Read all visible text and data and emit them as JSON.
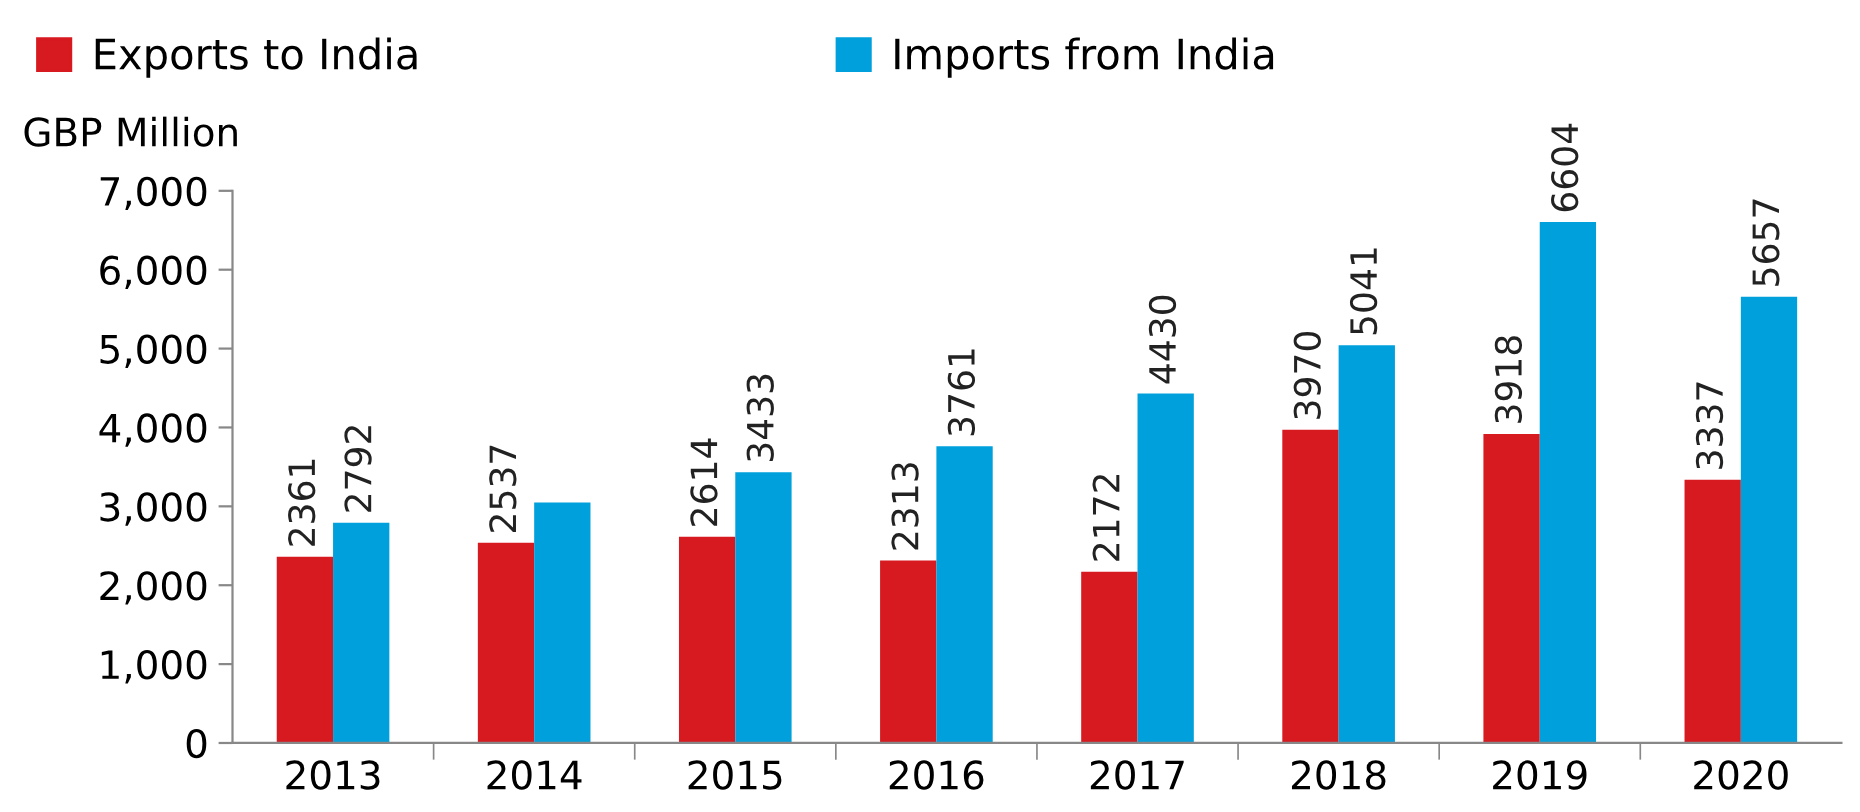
{
  "chart_data": {
    "type": "bar",
    "ylabel": "GBP Million",
    "categories": [
      "2013",
      "2014",
      "2015",
      "2016",
      "2017",
      "2018",
      "2019",
      "2020"
    ],
    "series": [
      {
        "name": "Exports to India",
        "color": "#d71920",
        "values": [
          2361,
          2537,
          2614,
          2313,
          2172,
          3970,
          3918,
          3337
        ],
        "value_labels": [
          "2361",
          "2537",
          "2614",
          "2313",
          "2172",
          "3970",
          "3918",
          "3337"
        ]
      },
      {
        "name": "Imports from India",
        "color": "#00a0dc",
        "values": [
          2792,
          3050,
          3433,
          3761,
          4430,
          5041,
          6604,
          5657
        ],
        "value_labels": [
          "2792",
          null,
          "3433",
          "3761",
          "4430",
          "5041",
          "6604",
          "5657"
        ]
      }
    ],
    "ylim": [
      0,
      7000
    ],
    "yticks": [
      {
        "value": 0,
        "label": "0"
      },
      {
        "value": 1000,
        "label": "1,000"
      },
      {
        "value": 2000,
        "label": "2,000"
      },
      {
        "value": 3000,
        "label": "3,000"
      },
      {
        "value": 4000,
        "label": "4,000"
      },
      {
        "value": 5000,
        "label": "5,000"
      },
      {
        "value": 6000,
        "label": "6,000"
      },
      {
        "value": 7000,
        "label": "7,000"
      }
    ],
    "grid": false,
    "legend": "top"
  }
}
